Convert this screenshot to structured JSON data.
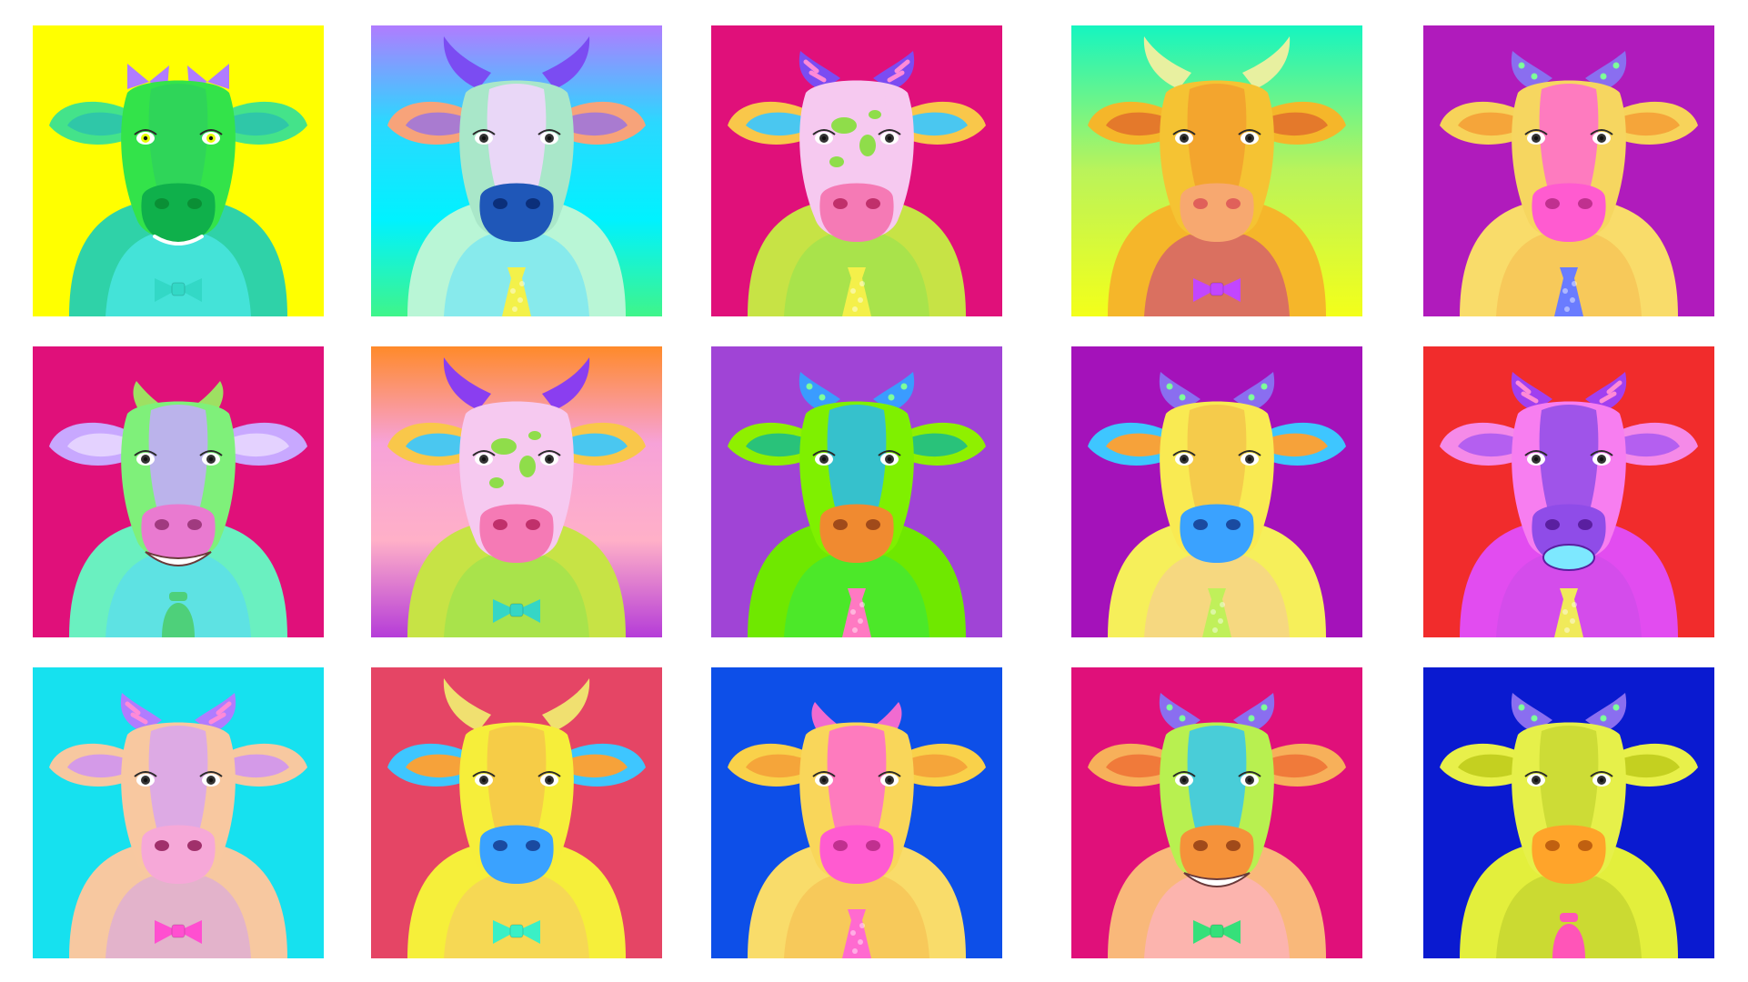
{
  "gallery": {
    "tiles": [
      {
        "background": [
          "#ffff00"
        ],
        "face": "#33e34a",
        "face2": "#2fd25c",
        "ears": "#44e38a",
        "inner_ear": "#2fc7a8",
        "muzzle": "#0fb04b",
        "nostril": "#0a8f35",
        "horns": "#b07cff",
        "horn_style": "bow",
        "body": "#2fd2a8",
        "accent": "#55f0ff",
        "neckwear": "bow",
        "neck_color": "#33d8c6",
        "patches": false,
        "eye": "#e7ff00",
        "mouth": "smile"
      },
      {
        "background": [
          "#b07cff",
          "#2bd8ff",
          "#00f2ff",
          "#3ff58a"
        ],
        "face": "#a9e7c9",
        "face2": "#f4d3ff",
        "ears": "#f7a37a",
        "inner_ear": "#a97bd0",
        "muzzle": "#1f57b8",
        "nostril": "#0b2f7a",
        "horns": "#7b4cf2",
        "horn_style": "long",
        "body": "#b9f6d6",
        "accent": "#5fe0ff",
        "neckwear": "tie",
        "neck_color": "#f3f14a",
        "patches": false,
        "eye": "#333333",
        "mouth": "none"
      },
      {
        "background": [
          "#e0107a"
        ],
        "face": "#f6c9f0",
        "face2": "#f6c9f0",
        "ears": "#f9c74a",
        "inner_ear": "#4ac7f0",
        "muzzle": "#f57ab5",
        "nostril": "#c0306b",
        "horns": "#7b4cf2",
        "horn_style": "striped",
        "body": "#c7e345",
        "accent": "#90e350",
        "neckwear": "tie",
        "neck_color": "#f4f04a",
        "patches": true,
        "eye": "#333333",
        "mouth": "none"
      },
      {
        "background": [
          "#15f5c0",
          "#baf35a",
          "#f3ff1a"
        ],
        "face": "#f5c333",
        "face2": "#f2a02e",
        "ears": "#f5b62a",
        "inner_ear": "#e4792b",
        "muzzle": "#f7a870",
        "nostril": "#e0605a",
        "horns": "#e8f0a0",
        "horn_style": "long",
        "body": "#f5b62a",
        "accent": "#c2368c",
        "neckwear": "bow",
        "neck_color": "#c246ff",
        "patches": false,
        "eye": "#333333",
        "mouth": "none"
      },
      {
        "background": [
          "#b01bbc"
        ],
        "face": "#f6d660",
        "face2": "#ff6bd0",
        "ears": "#f7d35a",
        "inner_ear": "#f5a53a",
        "muzzle": "#ff5bd0",
        "nostril": "#c0308f",
        "horns": "#8a6ef0",
        "horn_style": "stars",
        "body": "#f9dc6a",
        "accent": "#f6b94c",
        "neckwear": "tie",
        "neck_color": "#6a7cff",
        "patches": false,
        "eye": "#333333",
        "mouth": "none"
      },
      {
        "background": [
          "#e0107a"
        ],
        "face": "#7ff07a",
        "face2": "#c6a8ff",
        "ears": "#c8a8ff",
        "inner_ear": "#e4d2ff",
        "muzzle": "#e97ad0",
        "nostril": "#a03a7f",
        "horns": "#9ee062",
        "horn_style": "short",
        "body": "#6af0c0",
        "accent": "#54d7ff",
        "neckwear": "bell",
        "neck_color": "#4ed07a",
        "patches": false,
        "eye": "#333333",
        "mouth": "teeth"
      },
      {
        "background": [
          "#ff8a2a",
          "#f7a2d8",
          "#ffb0c8",
          "#b53cd8"
        ],
        "face": "#f6c9f0",
        "face2": "#f6c9f0",
        "ears": "#f9c74a",
        "inner_ear": "#4ac7f0",
        "muzzle": "#f57ab5",
        "nostril": "#c0306b",
        "horns": "#8a3ef0",
        "horn_style": "long",
        "body": "#c7e345",
        "accent": "#90e350",
        "neckwear": "bow",
        "neck_color": "#35d6c6",
        "patches": true,
        "eye": "#333333",
        "mouth": "none"
      },
      {
        "background": [
          "#a044d6"
        ],
        "face": "#7ff000",
        "face2": "#29b8f0",
        "ears": "#8ff000",
        "inner_ear": "#29c27a",
        "muzzle": "#f08a30",
        "nostril": "#a04a1a",
        "horns": "#3a9cff",
        "horn_style": "stars",
        "body": "#6fe800",
        "accent": "#2fe84a",
        "neckwear": "tie",
        "neck_color": "#ff79c2",
        "patches": false,
        "eye": "#333333",
        "mouth": "none"
      },
      {
        "background": [
          "#a412ba"
        ],
        "face": "#f9ea52",
        "face2": "#f5c64a",
        "ears": "#3ec6ff",
        "inner_ear": "#f6a23a",
        "muzzle": "#3aa2ff",
        "nostril": "#1a4aa0",
        "horns": "#8a6ef0",
        "horn_style": "stars",
        "body": "#f6ef5a",
        "accent": "#f6c5a0",
        "neckwear": "tie",
        "neck_color": "#c0f05a",
        "patches": false,
        "eye": "#333333",
        "mouth": "none"
      },
      {
        "background": [
          "#f12c2c"
        ],
        "face": "#f77ef0",
        "face2": "#8f4ce8",
        "ears": "#f58ae8",
        "inner_ear": "#b45ff0",
        "muzzle": "#8f4ce8",
        "nostril": "#5a1fa0",
        "horns": "#a040f0",
        "horn_style": "striped",
        "body": "#e24cf0",
        "accent": "#c84ce8",
        "neckwear": "tie",
        "neck_color": "#f0ea5a",
        "patches": false,
        "eye": "#333333",
        "mouth": "open"
      },
      {
        "background": [
          "#16e1ef"
        ],
        "face": "#f8c8a0",
        "face2": "#d8a4f0",
        "ears": "#f7c8a0",
        "inner_ear": "#d49ae8",
        "muzzle": "#f6a8d8",
        "nostril": "#a0306b",
        "horns": "#b07cff",
        "horn_style": "striped",
        "body": "#f7c8a0",
        "accent": "#d3a2ef",
        "neckwear": "bow",
        "neck_color": "#ff4fd0",
        "patches": false,
        "eye": "#333333",
        "mouth": "none"
      },
      {
        "background": [
          "#e54565"
        ],
        "face": "#f6ee3a",
        "face2": "#f6c64a",
        "ears": "#3ec6ff",
        "inner_ear": "#f6a23a",
        "muzzle": "#3aa2ff",
        "nostril": "#1a4aa0",
        "horns": "#f0e070",
        "horn_style": "long",
        "body": "#f6ef3a",
        "accent": "#f6c56a",
        "neckwear": "bow",
        "neck_color": "#3af0c6",
        "patches": false,
        "eye": "#333333",
        "mouth": "none"
      },
      {
        "background": [
          "#0d4fe8"
        ],
        "face": "#f9d65a",
        "face2": "#ff6bd0",
        "ears": "#f9d14a",
        "inner_ear": "#f5a53a",
        "muzzle": "#ff5bd0",
        "nostril": "#c0308f",
        "horns": "#f06bd0",
        "horn_style": "short",
        "body": "#f9dc6a",
        "accent": "#f6b94c",
        "neckwear": "tie",
        "neck_color": "#ff6ad0",
        "patches": false,
        "eye": "#333333",
        "mouth": "none"
      },
      {
        "background": [
          "#e0107a"
        ],
        "face": "#b8f050",
        "face2": "#35c7f0",
        "ears": "#f7b05a",
        "inner_ear": "#f07a3a",
        "muzzle": "#f5923a",
        "nostril": "#a04a1a",
        "horns": "#8a6ef0",
        "horn_style": "stars",
        "body": "#f9b87a",
        "accent": "#ffb0d8",
        "neckwear": "bow",
        "neck_color": "#35e07a",
        "patches": false,
        "eye": "#333333",
        "mouth": "teeth"
      },
      {
        "background": [
          "#0a1ad0"
        ],
        "face": "#e6f04a",
        "face2": "#c8d832",
        "ears": "#e8f04a",
        "inner_ear": "#c4d020",
        "muzzle": "#ffa42a",
        "nostril": "#c06010",
        "horns": "#8a6ef0",
        "horn_style": "stars",
        "body": "#e3ef3c",
        "accent": "#b8c82a",
        "neckwear": "bell",
        "neck_color": "#ff55b8",
        "patches": false,
        "eye": "#333333",
        "mouth": "none"
      }
    ]
  }
}
